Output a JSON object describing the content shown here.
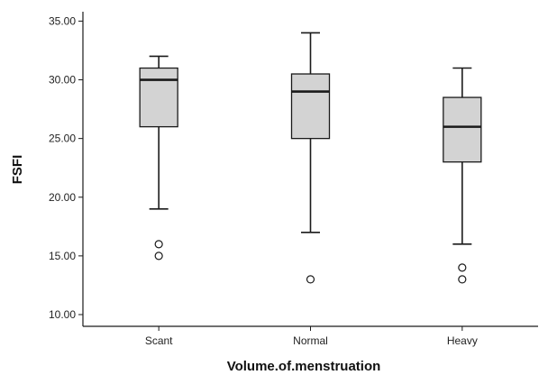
{
  "chart_data": {
    "type": "box",
    "title": "",
    "xlabel": "Volume.of.menstruation",
    "ylabel": "FSFI",
    "categories": [
      "Scant",
      "Normal",
      "Heavy"
    ],
    "ylim": [
      9.0,
      35.8
    ],
    "yticks": [
      "10.00",
      "15.00",
      "20.00",
      "25.00",
      "30.00",
      "35.00"
    ],
    "ytick_values": [
      10,
      15,
      20,
      25,
      30,
      35
    ],
    "grid": false,
    "legend": "none",
    "colors": {
      "box_fill": "#d3d3d3",
      "stroke": "#1a1a1a",
      "background": "#ffffff"
    },
    "boxes": [
      {
        "category": "Scant",
        "whisker_low": 19,
        "q1": 26,
        "median": 30,
        "q3": 31,
        "whisker_high": 32,
        "outliers": [
          16,
          15
        ]
      },
      {
        "category": "Normal",
        "whisker_low": 17,
        "q1": 25,
        "median": 29,
        "q3": 30.5,
        "whisker_high": 34,
        "outliers": [
          13
        ]
      },
      {
        "category": "Heavy",
        "whisker_low": 16,
        "q1": 23,
        "median": 26,
        "q3": 28.5,
        "whisker_high": 31,
        "outliers": [
          14,
          13
        ]
      }
    ]
  }
}
